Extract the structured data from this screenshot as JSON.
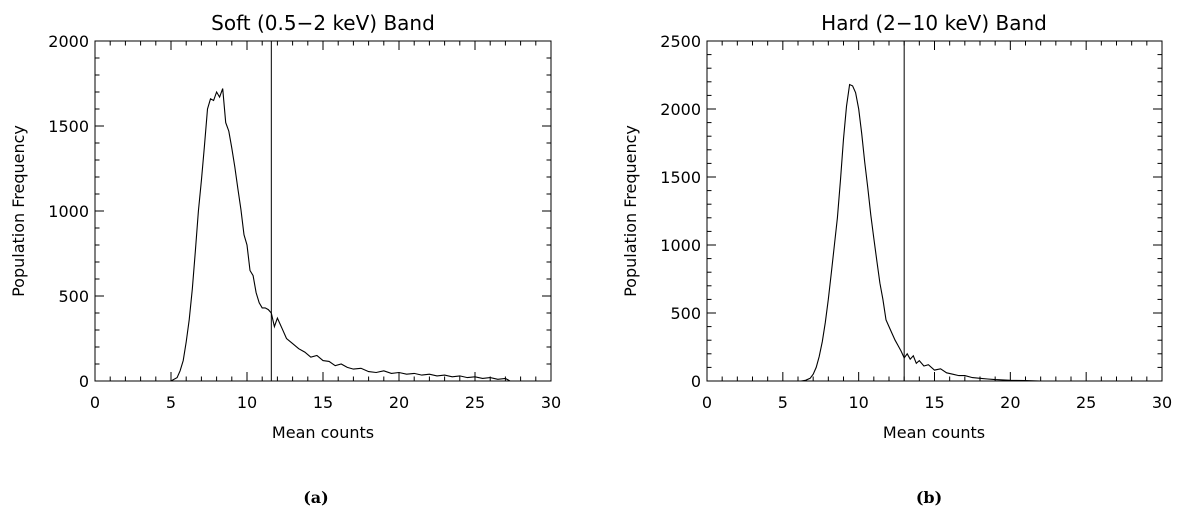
{
  "chart_data": [
    {
      "type": "line",
      "title": "Soft (0.5−2 keV) Band",
      "xlabel": "Mean counts",
      "ylabel": "Population Frequency",
      "caption": "(a)",
      "xlim": [
        0,
        30
      ],
      "ylim": [
        0,
        2000
      ],
      "xticks": [
        "0",
        "5",
        "10",
        "15",
        "20",
        "25",
        "30"
      ],
      "yticks": [
        "0",
        "500",
        "1000",
        "1500",
        "2000"
      ],
      "threshold_x": 11.6,
      "series": [
        {
          "x": [
            0,
            5.0,
            5.4,
            5.6,
            5.8,
            6.0,
            6.2,
            6.4,
            6.6,
            6.8,
            7.0,
            7.2,
            7.4,
            7.6,
            7.8,
            8.0,
            8.2,
            8.4,
            8.6,
            8.8,
            9.0,
            9.2,
            9.4,
            9.6,
            9.8,
            10.0,
            10.2,
            10.4,
            10.6,
            10.8,
            11.0,
            11.2,
            11.4,
            11.6,
            11.8,
            12.0,
            12.3,
            12.6,
            13.0,
            13.4,
            13.8,
            14.2,
            14.6,
            15.0,
            15.4,
            15.8,
            16.2,
            16.6,
            17.0,
            17.5,
            18.0,
            18.5,
            19.0,
            19.5,
            20.0,
            20.5,
            21.0,
            21.5,
            22.0,
            22.5,
            23.0,
            23.5,
            24.0,
            24.5,
            25.0,
            25.5,
            26.0,
            26.5,
            27.0,
            27.3
          ],
          "y": [
            0,
            0,
            20,
            60,
            120,
            230,
            360,
            540,
            760,
            1000,
            1180,
            1380,
            1600,
            1660,
            1650,
            1700,
            1670,
            1720,
            1520,
            1470,
            1370,
            1260,
            1130,
            1010,
            860,
            800,
            650,
            620,
            520,
            460,
            430,
            430,
            420,
            400,
            320,
            370,
            310,
            250,
            220,
            190,
            170,
            140,
            150,
            120,
            115,
            90,
            100,
            80,
            70,
            75,
            55,
            50,
            60,
            45,
            50,
            40,
            45,
            35,
            40,
            30,
            35,
            25,
            30,
            20,
            25,
            15,
            20,
            10,
            15,
            0
          ]
        }
      ]
    },
    {
      "type": "line",
      "title": "Hard (2−10 keV) Band",
      "xlabel": "Mean counts",
      "ylabel": "Population Frequency",
      "caption": "(b)",
      "xlim": [
        0,
        30
      ],
      "ylim": [
        0,
        2500
      ],
      "xticks": [
        "0",
        "5",
        "10",
        "15",
        "20",
        "25",
        "30"
      ],
      "yticks": [
        "0",
        "500",
        "1000",
        "1500",
        "2000",
        "2500"
      ],
      "threshold_x": 13.0,
      "series": [
        {
          "x": [
            0,
            6.2,
            6.5,
            6.8,
            7.0,
            7.2,
            7.4,
            7.6,
            7.8,
            8.0,
            8.2,
            8.4,
            8.6,
            8.8,
            9.0,
            9.2,
            9.4,
            9.6,
            9.8,
            10.0,
            10.2,
            10.4,
            10.6,
            10.8,
            11.0,
            11.2,
            11.4,
            11.6,
            11.8,
            12.0,
            12.2,
            12.4,
            12.6,
            12.8,
            13.0,
            13.2,
            13.4,
            13.6,
            13.8,
            14.0,
            14.3,
            14.6,
            15.0,
            15.4,
            15.8,
            16.2,
            16.6,
            17.0,
            17.5,
            18.0,
            18.5,
            19.0,
            19.5,
            20.0,
            21.0,
            22.0
          ],
          "y": [
            0,
            0,
            5,
            20,
            50,
            100,
            180,
            290,
            430,
            600,
            800,
            1000,
            1200,
            1480,
            1780,
            2020,
            2180,
            2170,
            2120,
            2000,
            1820,
            1610,
            1420,
            1220,
            1050,
            880,
            720,
            600,
            450,
            400,
            350,
            300,
            260,
            220,
            170,
            200,
            160,
            185,
            130,
            150,
            110,
            120,
            80,
            90,
            60,
            50,
            40,
            40,
            25,
            20,
            15,
            10,
            8,
            5,
            3,
            0
          ]
        }
      ]
    }
  ]
}
